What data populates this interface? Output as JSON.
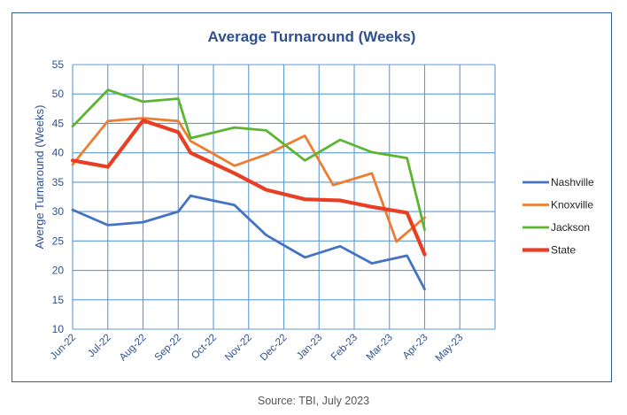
{
  "source": "Source: TBI, July 2023",
  "chart_data": {
    "type": "line",
    "title": "Average Turnaround (Weeks)",
    "xlabel": "",
    "ylabel": "Averge Turnaround (Weeks)",
    "ylim": [
      10,
      55
    ],
    "yticks": [
      10,
      15,
      20,
      25,
      30,
      35,
      40,
      45,
      50,
      55
    ],
    "categories": [
      "Jun-22",
      "Jul-22",
      "Aug-22",
      "Sep-22",
      "Oct-22",
      "Nov-22",
      "Dec-22",
      "Jan-23",
      "Feb-23",
      "Mar-23",
      "Apr-23",
      "May-23"
    ],
    "grid": true,
    "legend": "right",
    "series": [
      {
        "name": "Nashville",
        "color": "#4472c4",
        "points": [
          [
            0,
            30.3
          ],
          [
            1,
            27.7
          ],
          [
            2,
            28.2
          ],
          [
            3,
            30.0
          ],
          [
            3.35,
            32.7
          ],
          [
            4.6,
            31.1
          ],
          [
            5.5,
            26.0
          ],
          [
            6.6,
            22.2
          ],
          [
            7.6,
            24.1
          ],
          [
            8.5,
            21.2
          ],
          [
            9.5,
            22.5
          ],
          [
            10.0,
            16.8
          ]
        ]
      },
      {
        "name": "Knoxville",
        "color": "#ed7d31",
        "points": [
          [
            0,
            38.0
          ],
          [
            1,
            45.4
          ],
          [
            2,
            45.9
          ],
          [
            3,
            45.4
          ],
          [
            3.35,
            42.0
          ],
          [
            4.6,
            37.8
          ],
          [
            5.5,
            39.7
          ],
          [
            6.6,
            42.9
          ],
          [
            7.4,
            34.5
          ],
          [
            8.5,
            36.5
          ],
          [
            9.2,
            24.9
          ],
          [
            10.0,
            29.0
          ]
        ]
      },
      {
        "name": "Jackson",
        "color": "#5cb531",
        "points": [
          [
            0,
            44.5
          ],
          [
            1,
            50.7
          ],
          [
            2,
            48.7
          ],
          [
            3,
            49.2
          ],
          [
            3.35,
            42.5
          ],
          [
            4.6,
            44.3
          ],
          [
            5.5,
            43.8
          ],
          [
            6.6,
            38.7
          ],
          [
            7.6,
            42.2
          ],
          [
            8.5,
            40.1
          ],
          [
            9.5,
            39.1
          ],
          [
            10.0,
            26.9
          ]
        ]
      },
      {
        "name": "State",
        "color": "#e83e23",
        "points": [
          [
            0,
            38.7
          ],
          [
            1,
            37.6
          ],
          [
            2,
            45.5
          ],
          [
            3,
            43.5
          ],
          [
            3.35,
            40.0
          ],
          [
            4.6,
            36.5
          ],
          [
            5.5,
            33.7
          ],
          [
            6.6,
            32.1
          ],
          [
            7.6,
            31.9
          ],
          [
            8.5,
            30.8
          ],
          [
            9.5,
            29.8
          ],
          [
            10.0,
            22.7
          ]
        ]
      }
    ]
  }
}
